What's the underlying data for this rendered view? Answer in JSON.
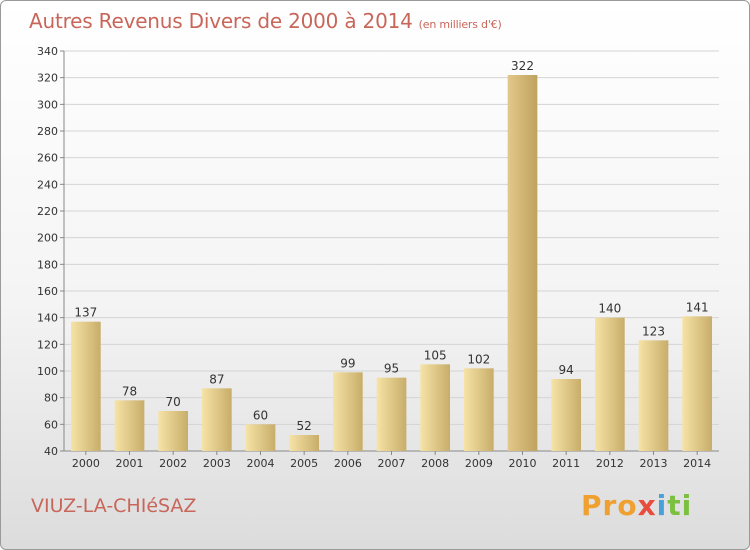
{
  "header": {
    "title": "Autres Revenus Divers de 2000 à 2014",
    "unit": "(en milliers d'€)"
  },
  "footer": {
    "commune": "VIUZ-LA-CHIéSAZ",
    "logo": [
      "Pro",
      "x",
      "i",
      "ti"
    ]
  },
  "colors": {
    "title": "#c8665a",
    "bar_light": "#f6e3a6",
    "bar_dark": "#c8ad6a",
    "bar_highlight_light": "#e2c88a",
    "bar_highlight_dark": "#bfa25e"
  },
  "chart_data": {
    "type": "bar",
    "categories": [
      "2000",
      "2001",
      "2002",
      "2003",
      "2004",
      "2005",
      "2006",
      "2007",
      "2008",
      "2009",
      "2010",
      "2011",
      "2012",
      "2013",
      "2014"
    ],
    "values": [
      137,
      78,
      70,
      87,
      60,
      52,
      99,
      95,
      105,
      102,
      322,
      94,
      140,
      123,
      141
    ],
    "ylim": [
      40,
      340
    ],
    "yticks": [
      40,
      60,
      80,
      100,
      120,
      140,
      160,
      180,
      200,
      220,
      240,
      260,
      280,
      300,
      320,
      340
    ],
    "grid": true
  }
}
